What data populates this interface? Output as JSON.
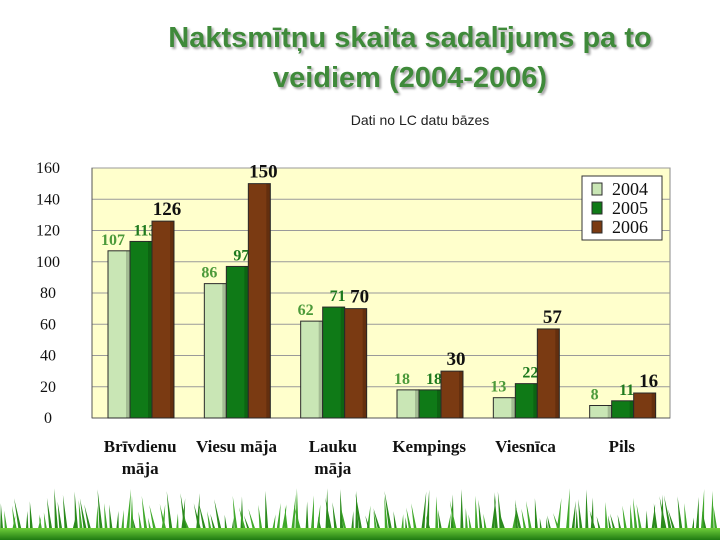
{
  "slide": {
    "title_line1": "Naktsmītņu skaita sadalījums pa to",
    "title_line2": "veidiem (2004-2006)",
    "subtitle": "Dati no LC datu bāzes"
  },
  "colors": {
    "plot_bg": "#ffffcc",
    "title": "#3f8a3a",
    "label_2004": "#4c9a3a",
    "label_2005": "#1e7a1e",
    "label_2006": "#111111"
  },
  "chart_data": {
    "type": "bar",
    "title": "",
    "xlabel": "",
    "ylabel": "",
    "ylim": [
      0,
      160
    ],
    "yticks": [
      0,
      20,
      40,
      60,
      80,
      100,
      120,
      140,
      160
    ],
    "grid": true,
    "legend_position": "top-right",
    "categories": [
      [
        "Brīvdienu",
        "māja"
      ],
      [
        "Viesu māja"
      ],
      [
        "Lauku",
        "māja"
      ],
      [
        "Kempings"
      ],
      [
        "Viesnīca"
      ],
      [
        "Pils"
      ]
    ],
    "series": [
      {
        "name": "2004",
        "values": [
          107,
          86,
          62,
          18,
          13,
          8
        ],
        "color": "#c9e6b5"
      },
      {
        "name": "2005",
        "values": [
          113,
          97,
          71,
          18,
          22,
          11
        ],
        "color": "#0f7a17"
      },
      {
        "name": "2006",
        "values": [
          126,
          150,
          70,
          30,
          57,
          16
        ],
        "color": "#7a3a12"
      }
    ]
  }
}
